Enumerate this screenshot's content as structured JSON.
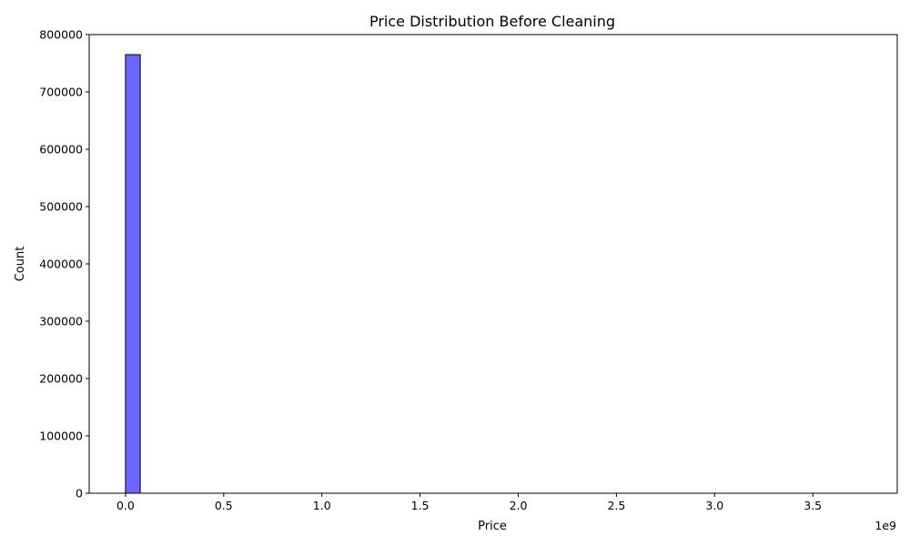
{
  "chart_data": {
    "type": "bar",
    "title": "Price Distribution Before Cleaning",
    "xlabel": "Price",
    "ylabel": "Count",
    "x_offset_label": "1e9",
    "xlim": [
      -0.185,
      3.93
    ],
    "ylim": [
      0,
      800000
    ],
    "x_ticks": [
      {
        "value": 0.0,
        "label": "0.0"
      },
      {
        "value": 0.5,
        "label": "0.5"
      },
      {
        "value": 1.0,
        "label": "1.0"
      },
      {
        "value": 1.5,
        "label": "1.5"
      },
      {
        "value": 2.0,
        "label": "2.0"
      },
      {
        "value": 2.5,
        "label": "2.5"
      },
      {
        "value": 3.0,
        "label": "3.0"
      },
      {
        "value": 3.5,
        "label": "3.5"
      }
    ],
    "y_ticks": [
      {
        "value": 0,
        "label": "0"
      },
      {
        "value": 100000,
        "label": "100000"
      },
      {
        "value": 200000,
        "label": "200000"
      },
      {
        "value": 300000,
        "label": "300000"
      },
      {
        "value": 400000,
        "label": "400000"
      },
      {
        "value": 500000,
        "label": "500000"
      },
      {
        "value": 600000,
        "label": "600000"
      },
      {
        "value": 700000,
        "label": "700000"
      },
      {
        "value": 800000,
        "label": "800000"
      }
    ],
    "bins": [
      {
        "start": 0.0,
        "end": 0.075,
        "count": 765000
      }
    ],
    "data_max": 3.75,
    "grid": false,
    "colors": {
      "bar_fill": "#6b66ff",
      "bar_edge": "#000000",
      "axis": "#000000"
    }
  }
}
